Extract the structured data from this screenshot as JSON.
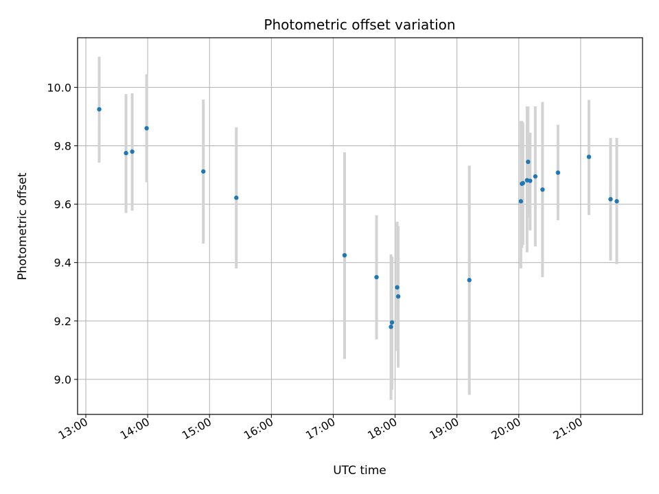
{
  "chart_data": {
    "type": "scatter",
    "title": "Photometric offset variation",
    "xlabel": "UTC time",
    "ylabel": "Photometric offset",
    "xlim": [
      "12:52",
      "22:00"
    ],
    "ylim": [
      8.88,
      10.17
    ],
    "xticks": [
      "13:00",
      "14:00",
      "15:00",
      "16:00",
      "17:00",
      "18:00",
      "19:00",
      "20:00",
      "21:00"
    ],
    "yticks": [
      "9.0",
      "9.2",
      "9.4",
      "9.6",
      "9.8",
      "10.0"
    ],
    "grid": true,
    "errorbar_color": "#d3d3d3",
    "marker_color": "#1f77b4",
    "series": [
      {
        "points": [
          {
            "t": "13:13",
            "y": 9.925,
            "ylow": 9.742,
            "yhigh": 10.105
          },
          {
            "t": "13:39",
            "y": 9.775,
            "ylow": 9.57,
            "yhigh": 9.977
          },
          {
            "t": "13:45",
            "y": 9.78,
            "ylow": 9.578,
            "yhigh": 9.98
          },
          {
            "t": "13:59",
            "y": 9.86,
            "ylow": 9.675,
            "yhigh": 10.045
          },
          {
            "t": "14:54",
            "y": 9.712,
            "ylow": 9.465,
            "yhigh": 9.958
          },
          {
            "t": "15:26",
            "y": 9.622,
            "ylow": 9.38,
            "yhigh": 9.863
          },
          {
            "t": "17:11",
            "y": 9.425,
            "ylow": 9.07,
            "yhigh": 9.778
          },
          {
            "t": "17:42",
            "y": 9.35,
            "ylow": 9.137,
            "yhigh": 9.562
          },
          {
            "t": "17:56",
            "y": 9.18,
            "ylow": 8.93,
            "yhigh": 9.428
          },
          {
            "t": "17:57",
            "y": 9.195,
            "ylow": 8.965,
            "yhigh": 9.42
          },
          {
            "t": "18:02",
            "y": 9.315,
            "ylow": 9.097,
            "yhigh": 9.54
          },
          {
            "t": "18:03",
            "y": 9.284,
            "ylow": 9.04,
            "yhigh": 9.525
          },
          {
            "t": "19:12",
            "y": 9.34,
            "ylow": 8.947,
            "yhigh": 9.732
          },
          {
            "t": "20:02",
            "y": 9.61,
            "ylow": 9.38,
            "yhigh": 9.885
          },
          {
            "t": "20:03",
            "y": 9.67,
            "ylow": 9.45,
            "yhigh": 9.885
          },
          {
            "t": "20:04",
            "y": 9.672,
            "ylow": 9.46,
            "yhigh": 9.88
          },
          {
            "t": "20:08",
            "y": 9.682,
            "ylow": 9.435,
            "yhigh": 9.935
          },
          {
            "t": "20:09",
            "y": 9.745,
            "ylow": 9.555,
            "yhigh": 9.935
          },
          {
            "t": "20:11",
            "y": 9.68,
            "ylow": 9.51,
            "yhigh": 9.845
          },
          {
            "t": "20:16",
            "y": 9.695,
            "ylow": 9.455,
            "yhigh": 9.935
          },
          {
            "t": "20:23",
            "y": 9.65,
            "ylow": 9.35,
            "yhigh": 9.95
          },
          {
            "t": "20:38",
            "y": 9.708,
            "ylow": 9.545,
            "yhigh": 9.872
          },
          {
            "t": "21:08",
            "y": 9.762,
            "ylow": 9.563,
            "yhigh": 9.957
          },
          {
            "t": "21:29",
            "y": 9.617,
            "ylow": 9.407,
            "yhigh": 9.827
          },
          {
            "t": "21:35",
            "y": 9.61,
            "ylow": 9.395,
            "yhigh": 9.827
          }
        ]
      }
    ]
  }
}
